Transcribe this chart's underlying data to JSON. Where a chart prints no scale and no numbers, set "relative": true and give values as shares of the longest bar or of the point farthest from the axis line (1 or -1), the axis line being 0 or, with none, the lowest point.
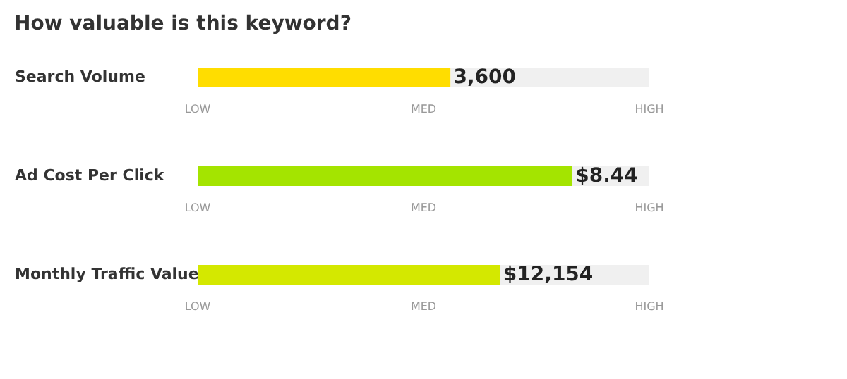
{
  "chart_data": [
    {
      "type": "bar",
      "orientation": "horizontal",
      "relative": true,
      "stacked": true,
      "title": "How valuable is this keyword?",
      "categories": [
        "Search Volume"
      ],
      "series": [
        {
          "color": "#ffdd00",
          "values": [
            0.56
          ]
        },
        {
          "color": "#f0f0f0",
          "values": [
            0.44
          ]
        }
      ],
      "annotations": [
        {
          "text": "3,600",
          "x": 0.56,
          "y": "Search Volume"
        },
        "LOW",
        "MED",
        "HIGH"
      ]
    },
    {
      "type": "bar",
      "orientation": "horizontal",
      "relative": true,
      "stacked": true,
      "categories": [
        "Ad Cost Per Click"
      ],
      "series": [
        {
          "color": "#a4e400",
          "values": [
            0.83
          ]
        },
        {
          "color": "#f0f0f0",
          "values": [
            0.17
          ]
        }
      ],
      "annotations": [
        {
          "text": "$8.44",
          "x": 0.83,
          "y": "Ad Cost Per Click"
        },
        "LOW",
        "MED",
        "HIGH"
      ]
    },
    {
      "type": "bar",
      "orientation": "horizontal",
      "relative": true,
      "stacked": true,
      "categories": [
        "Monthly Traffic Value"
      ],
      "series": [
        {
          "color": "#d4e800",
          "values": [
            0.67
          ]
        },
        {
          "color": "#f0f0f0",
          "values": [
            0.33
          ]
        }
      ],
      "annotations": [
        {
          "text": "$12,154",
          "x": 0.67,
          "y": "Monthly Traffic Value"
        },
        "LOW",
        "MED",
        "HIGH"
      ]
    }
  ]
}
